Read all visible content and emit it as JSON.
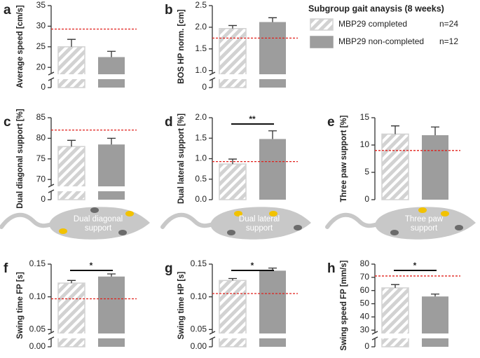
{
  "legend": {
    "title": "Subgroup gait anaysis (8 weeks)",
    "entries": [
      {
        "name": "MBP29 completed",
        "n": "n=24",
        "color": "#d2d2d2",
        "pattern": "hatch"
      },
      {
        "name": "MBP29 non-completed",
        "n": "n=12",
        "color": "#9d9d9d"
      }
    ]
  },
  "reference_color": "#e0201b",
  "illustrations": [
    {
      "label_lines": [
        "Dual diagonal",
        "support"
      ]
    },
    {
      "label_lines": [
        "Dual lateral",
        "support"
      ]
    },
    {
      "label_lines": [
        "Three paw",
        "support"
      ]
    }
  ],
  "chart_data": [
    {
      "type": "bar",
      "panel": "a",
      "ylabel": "Average speed [cm/s]",
      "values": [
        25,
        22.5
      ],
      "errors": [
        1.8,
        1.4
      ],
      "reference": 29.3,
      "axis_break": true,
      "ylim": [
        18.5,
        35
      ],
      "yticks": [
        0,
        20,
        25,
        30,
        35
      ]
    },
    {
      "type": "bar",
      "panel": "b",
      "ylabel": "BOS HP norm. [cm]",
      "values": [
        1.97,
        2.12
      ],
      "errors": [
        0.07,
        0.1
      ],
      "reference": 1.75,
      "axis_break": true,
      "ylim": [
        0.93,
        2.5
      ],
      "yticks": [
        0,
        {
          "value": 1,
          "label": "1.0"
        },
        1.5,
        {
          "value": 2,
          "label": "2.0"
        },
        2.5
      ]
    },
    {
      "type": "bar",
      "panel": "c",
      "ylabel": "Dual diagonal support [%]",
      "values": [
        78,
        78.5
      ],
      "errors": [
        1.5,
        1.5
      ],
      "reference": 82,
      "axis_break": true,
      "ylim": [
        68.5,
        85
      ],
      "yticks": [
        0,
        70,
        75,
        80,
        85
      ]
    },
    {
      "type": "bar",
      "panel": "d",
      "ylabel": "Dual lateral support [%]",
      "values": [
        0.87,
        1.48
      ],
      "errors": [
        0.12,
        0.2
      ],
      "reference": 0.93,
      "axis_break": false,
      "ylim": [
        0,
        2
      ],
      "significance": "**",
      "yticks": [
        {
          "value": 0,
          "label": "0.0"
        },
        0.5,
        {
          "value": 1,
          "label": "1.0"
        },
        1.5,
        {
          "value": 2,
          "label": "2.0"
        }
      ]
    },
    {
      "type": "bar",
      "panel": "e",
      "ylabel": "Three paw support [%]",
      "values": [
        12,
        11.8
      ],
      "errors": [
        1.5,
        1.5
      ],
      "reference": 9,
      "axis_break": false,
      "ylim": [
        0,
        15
      ],
      "yticks": [
        0,
        5,
        10,
        15
      ]
    },
    {
      "type": "bar",
      "panel": "f",
      "ylabel": "Swing time FP [s]",
      "values": [
        0.121,
        0.131
      ],
      "errors": [
        0.004,
        0.004
      ],
      "reference": 0.097,
      "axis_break": true,
      "ylim": [
        0.045,
        0.15
      ],
      "significance": "*",
      "yticks": [
        {
          "value": 0,
          "label": "0.00"
        },
        0.05,
        {
          "value": 0.1,
          "label": "0.10"
        },
        0.15
      ]
    },
    {
      "type": "bar",
      "panel": "g",
      "ylabel": "Swing time HP [s]",
      "values": [
        0.125,
        0.14
      ],
      "errors": [
        0.003,
        0.004
      ],
      "reference": 0.105,
      "axis_break": true,
      "ylim": [
        0.045,
        0.15
      ],
      "significance": "*",
      "yticks": [
        {
          "value": 0,
          "label": "0.00"
        },
        0.05,
        {
          "value": 0.1,
          "label": "0.10"
        },
        0.15
      ]
    },
    {
      "type": "bar",
      "panel": "h",
      "ylabel": "Swing speed FP [mm/s]",
      "values": [
        62,
        55.5
      ],
      "errors": [
        2.5,
        1.8
      ],
      "reference": 71,
      "axis_break": true,
      "ylim": [
        28,
        80
      ],
      "significance": "*",
      "yticks": [
        0,
        30,
        40,
        50,
        60,
        70,
        80
      ]
    }
  ]
}
